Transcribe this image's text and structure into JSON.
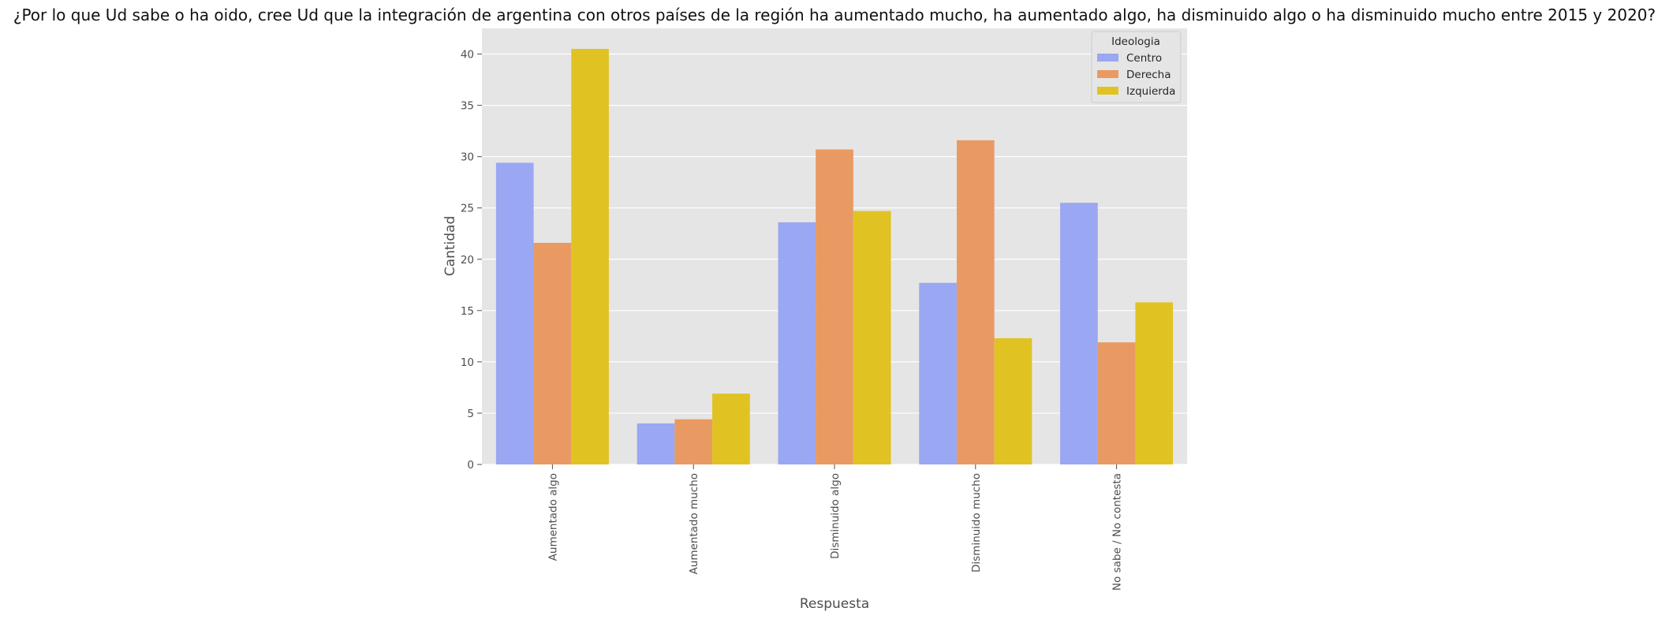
{
  "chart_data": {
    "type": "bar",
    "title": "¿Por lo que Ud sabe o ha oido, cree Ud que la integración de argentina con otros países de la región ha aumentado mucho, ha aumentado algo, ha disminuido algo o ha disminuido mucho entre 2015 y 2020?",
    "xlabel": "Respuesta",
    "ylabel": "Cantidad",
    "categories": [
      "Aumentado algo",
      "Aumentado mucho",
      "Disminuido algo",
      "Disminuido mucho",
      "No sabe / No contesta"
    ],
    "series": [
      {
        "name": "Centro",
        "color": "#9aa7f2",
        "values": [
          29.4,
          4.0,
          23.6,
          17.7,
          25.5
        ]
      },
      {
        "name": "Derecha",
        "color": "#e99a62",
        "values": [
          21.6,
          4.4,
          30.7,
          31.6,
          11.9
        ]
      },
      {
        "name": "Izquierda",
        "color": "#e0c323",
        "values": [
          40.5,
          6.9,
          24.7,
          12.3,
          15.8
        ]
      }
    ],
    "ylim": [
      0,
      42.5
    ],
    "yticks": [
      0,
      5,
      10,
      15,
      20,
      25,
      30,
      35,
      40
    ],
    "grid": true,
    "legend_title": "Ideologia",
    "legend_position": "top-right"
  }
}
